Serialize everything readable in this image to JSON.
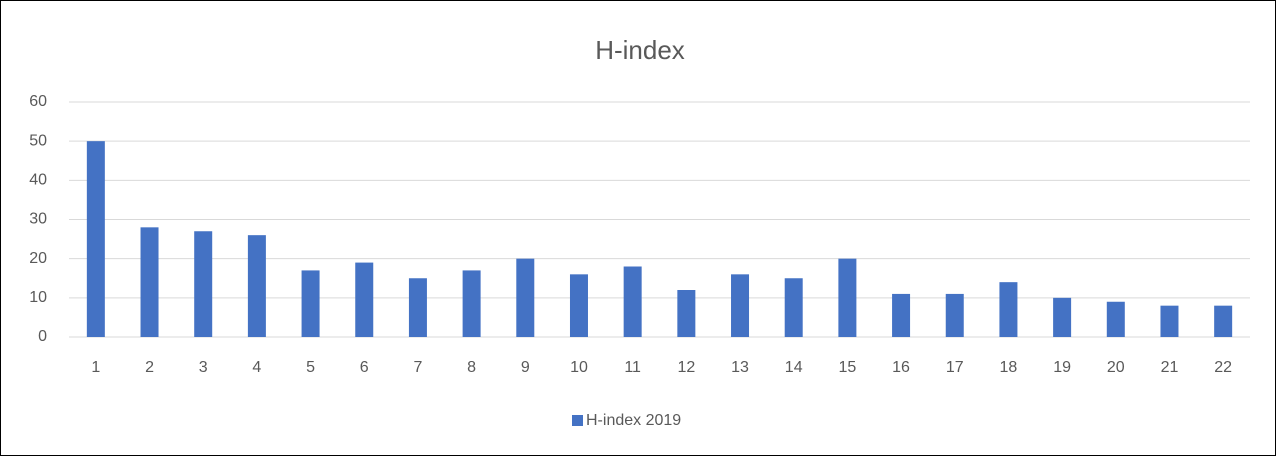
{
  "chart_data": {
    "type": "bar",
    "title": "H-index",
    "categories": [
      "1",
      "2",
      "3",
      "4",
      "5",
      "6",
      "7",
      "8",
      "9",
      "10",
      "11",
      "12",
      "13",
      "14",
      "15",
      "16",
      "17",
      "18",
      "19",
      "20",
      "21",
      "22"
    ],
    "series": [
      {
        "name": "H-index 2019",
        "color": "#4472c4",
        "values": [
          50,
          28,
          27,
          26,
          17,
          19,
          15,
          17,
          20,
          16,
          18,
          12,
          16,
          15,
          20,
          11,
          11,
          14,
          10,
          9,
          8,
          8
        ]
      }
    ],
    "ylim": [
      0,
      60
    ],
    "yticks": [
      0,
      10,
      20,
      30,
      40,
      50,
      60
    ],
    "grid": true,
    "legend": "bottom"
  }
}
